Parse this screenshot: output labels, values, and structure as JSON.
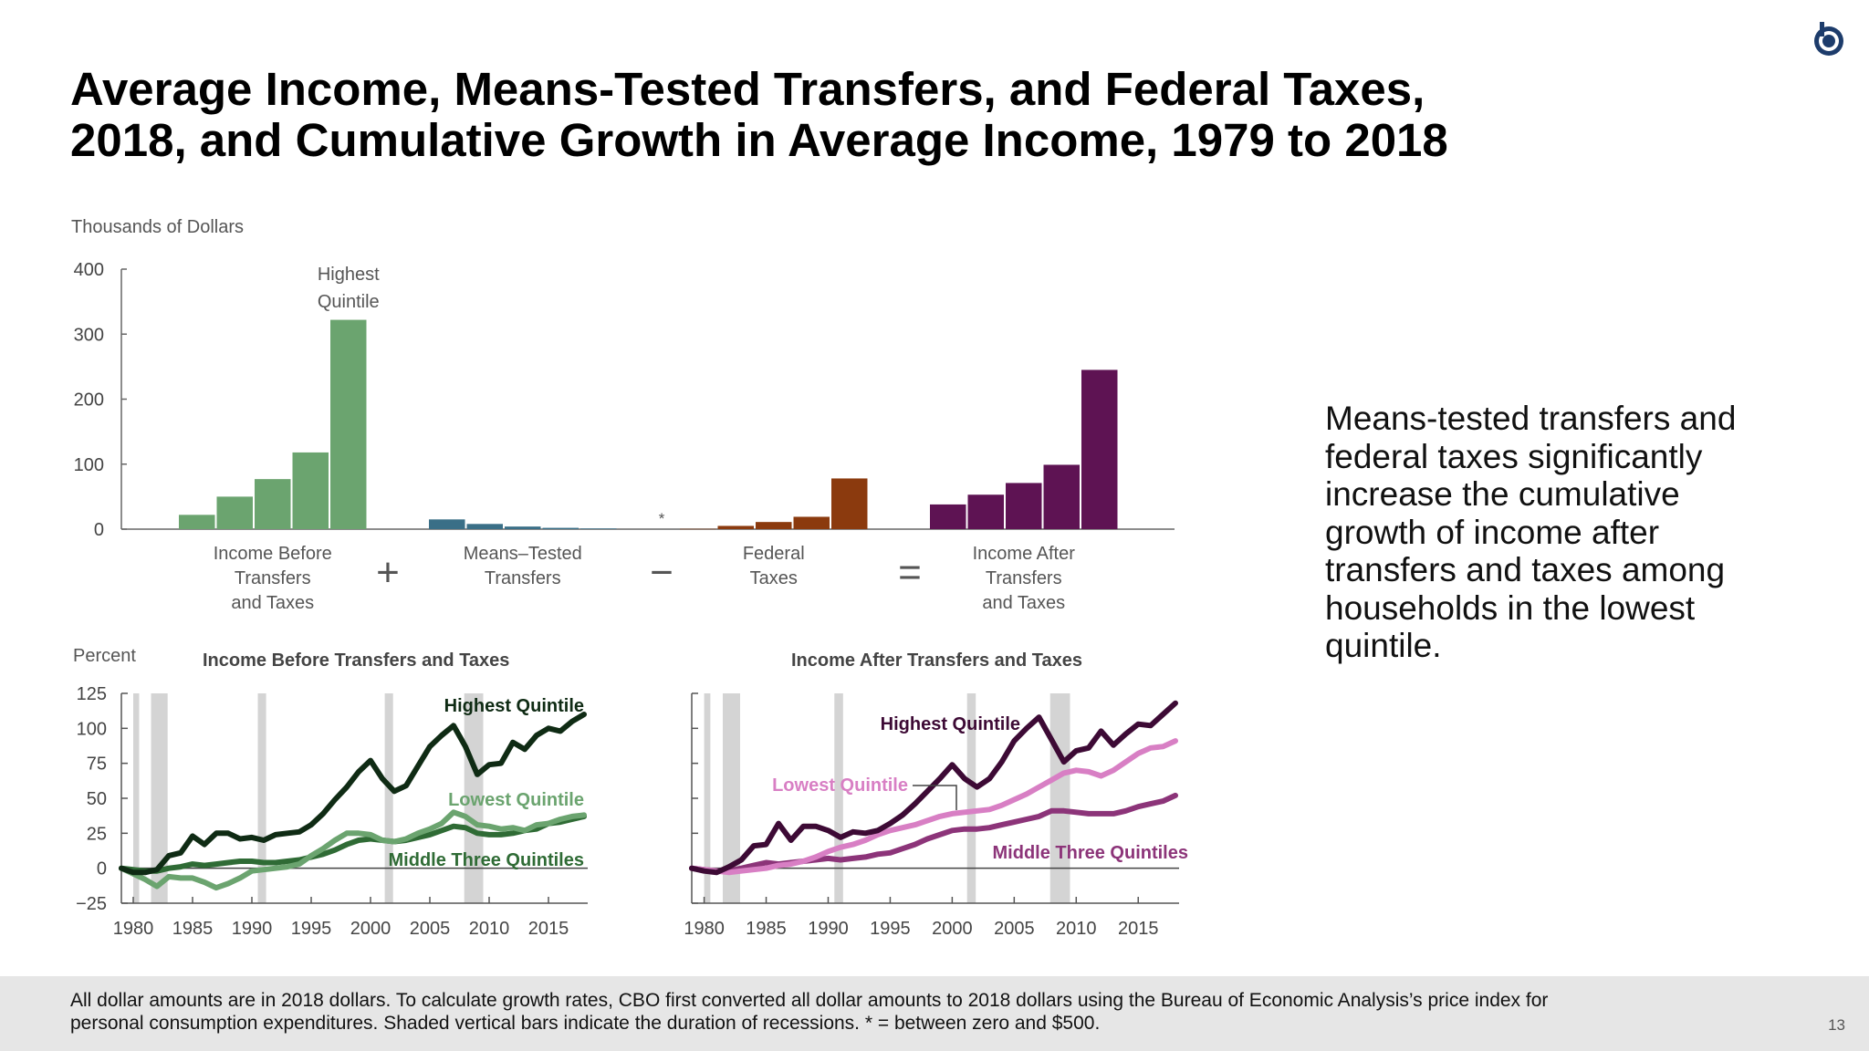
{
  "slide": {
    "title_line1": "Average Income, Means-Tested Transfers, and Federal Taxes,",
    "title_line2": "2018, and Cumulative Growth in Average Income, 1979 to 2018",
    "side_text": "Means-tested transfers and federal taxes significantly increase the cumulative growth of income after transfers and taxes among households in the lowest quintile.",
    "footnote_line1": "All dollar amounts are in 2018 dollars. To calculate growth rates, CBO first converted all dollar amounts to 2018 dollars using the Bureau of Economic Analysis’s price index for",
    "footnote_line2": "personal consumption expenditures. Shaded vertical bars indicate the duration of recessions. * = between zero and $500.",
    "page_number": "13",
    "logo_icon": "cbo-logo-icon"
  },
  "chart_data": [
    {
      "type": "bar",
      "ylabel": "Thousands of Dollars",
      "ylim": [
        0,
        400
      ],
      "yticks": [
        0,
        100,
        200,
        300,
        400
      ],
      "annotation": [
        "Highest",
        "Quintile"
      ],
      "asterisk": "*",
      "operators": [
        "+",
        "−",
        "="
      ],
      "groups": [
        {
          "label": [
            "Income Before",
            "Transfers",
            "and Taxes"
          ],
          "color": "#6ba46f",
          "values": [
            22,
            50,
            77,
            118,
            322
          ]
        },
        {
          "label": [
            "Means–Tested",
            "Transfers"
          ],
          "color": "#3a6f87",
          "values": [
            15,
            8,
            4,
            2,
            1
          ]
        },
        {
          "label": [
            "Federal",
            "Taxes"
          ],
          "color": "#8b3a0e",
          "values": [
            0.4,
            5,
            11,
            19,
            78
          ]
        },
        {
          "label": [
            "Income After",
            "Transfers",
            "and Taxes"
          ],
          "color": "#5e1353",
          "values": [
            38,
            53,
            71,
            99,
            245
          ]
        }
      ]
    },
    {
      "type": "line",
      "title": "Income Before Transfers and Taxes",
      "ylabel": "Percent",
      "ylim": [
        -25,
        125
      ],
      "yticks": [
        -25,
        0,
        25,
        50,
        75,
        100,
        125
      ],
      "xlim": [
        1979,
        2018
      ],
      "xticks": [
        1980,
        1985,
        1990,
        1995,
        2000,
        2005,
        2010,
        2015
      ],
      "recessions": [
        [
          1980,
          1980.5
        ],
        [
          1981.5,
          1982.9
        ],
        [
          1990.5,
          1991.2
        ],
        [
          2001.2,
          2001.9
        ],
        [
          2007.9,
          2009.5
        ]
      ],
      "x": [
        1979,
        1980,
        1981,
        1982,
        1983,
        1984,
        1985,
        1986,
        1987,
        1988,
        1989,
        1990,
        1991,
        1992,
        1993,
        1994,
        1995,
        1996,
        1997,
        1998,
        1999,
        2000,
        2001,
        2002,
        2003,
        2004,
        2005,
        2006,
        2007,
        2008,
        2009,
        2010,
        2011,
        2012,
        2013,
        2014,
        2015,
        2016,
        2017,
        2018
      ],
      "series": [
        {
          "name": "Highest Quintile",
          "color": "#0f2b14",
          "values": [
            0,
            -3,
            -3,
            -1,
            9,
            11,
            23,
            17,
            25,
            25,
            21,
            22,
            20,
            24,
            25,
            26,
            31,
            39,
            49,
            58,
            69,
            77,
            64,
            55,
            59,
            73,
            87,
            95,
            102,
            87,
            67,
            74,
            75,
            90,
            85,
            95,
            100,
            98,
            105,
            110
          ]
        },
        {
          "name": "Lowest Quintile",
          "color": "#6ba46f",
          "values": [
            0,
            -4,
            -8,
            -13,
            -6,
            -7,
            -7,
            -10,
            -14,
            -11,
            -7,
            -2,
            -1,
            0,
            1,
            3,
            9,
            14,
            20,
            25,
            25,
            24,
            20,
            19,
            21,
            25,
            28,
            32,
            40,
            37,
            31,
            30,
            28,
            29,
            27,
            31,
            32,
            35,
            37,
            38
          ]
        },
        {
          "name": "Middle Three Quintiles",
          "color": "#2f6b35",
          "values": [
            0,
            -1,
            -2,
            -2,
            0,
            1,
            3,
            2,
            3,
            4,
            5,
            5,
            4,
            4,
            5,
            6,
            8,
            10,
            13,
            17,
            20,
            21,
            20,
            19,
            20,
            22,
            24,
            27,
            30,
            29,
            25,
            24,
            24,
            25,
            27,
            28,
            32,
            33,
            35,
            37
          ]
        }
      ]
    },
    {
      "type": "line",
      "title": "Income After Transfers and Taxes",
      "ylim": [
        -25,
        125
      ],
      "yticks": [
        -25,
        0,
        25,
        50,
        75,
        100,
        125
      ],
      "xlim": [
        1979,
        2018
      ],
      "xticks": [
        1980,
        1985,
        1990,
        1995,
        2000,
        2005,
        2010,
        2015
      ],
      "recessions": [
        [
          1980,
          1980.5
        ],
        [
          1981.5,
          1982.9
        ],
        [
          1990.5,
          1991.2
        ],
        [
          2001.2,
          2001.9
        ],
        [
          2007.9,
          2009.5
        ]
      ],
      "x": [
        1979,
        1980,
        1981,
        1982,
        1983,
        1984,
        1985,
        1986,
        1987,
        1988,
        1989,
        1990,
        1991,
        1992,
        1993,
        1994,
        1995,
        1996,
        1997,
        1998,
        1999,
        2000,
        2001,
        2002,
        2003,
        2004,
        2005,
        2006,
        2007,
        2008,
        2009,
        2010,
        2011,
        2012,
        2013,
        2014,
        2015,
        2016,
        2017,
        2018
      ],
      "series": [
        {
          "name": "Highest Quintile",
          "color": "#3d0a35",
          "values": [
            0,
            -2,
            -3,
            1,
            6,
            16,
            17,
            32,
            20,
            30,
            30,
            27,
            22,
            26,
            25,
            27,
            32,
            38,
            46,
            55,
            64,
            74,
            64,
            58,
            64,
            76,
            91,
            100,
            108,
            92,
            76,
            84,
            86,
            98,
            88,
            96,
            103,
            102,
            110,
            118
          ]
        },
        {
          "name": "Lowest Quintile",
          "color": "#d87fc4",
          "values": [
            0,
            -1,
            -2,
            -3,
            -2,
            -1,
            0,
            2,
            3,
            5,
            8,
            12,
            15,
            17,
            20,
            24,
            27,
            29,
            31,
            34,
            37,
            39,
            40,
            41,
            42,
            45,
            49,
            53,
            58,
            63,
            68,
            70,
            69,
            66,
            70,
            76,
            82,
            86,
            87,
            91
          ]
        },
        {
          "name": "Middle Three Quintiles",
          "color": "#8c3479",
          "values": [
            0,
            -1,
            -2,
            -2,
            0,
            2,
            4,
            3,
            4,
            5,
            6,
            7,
            6,
            7,
            8,
            10,
            11,
            14,
            17,
            21,
            24,
            27,
            28,
            28,
            29,
            31,
            33,
            35,
            37,
            41,
            41,
            40,
            39,
            39,
            39,
            41,
            44,
            46,
            48,
            52
          ]
        }
      ]
    }
  ]
}
